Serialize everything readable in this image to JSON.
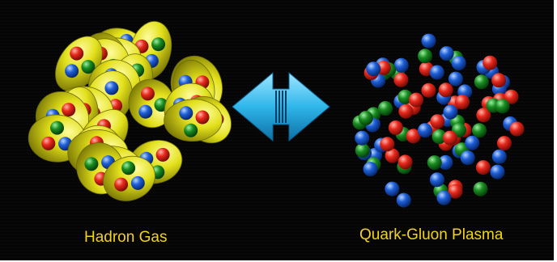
{
  "left_caption": "Hadron Gas",
  "right_caption": "Quark-Gluon Plasma",
  "colors": {
    "background": "#050505",
    "caption": "#f2d21a",
    "hadron": "#e2e01a",
    "quark_red": "#e8281c",
    "quark_green": "#1a8c22",
    "quark_blue": "#1e5fd8",
    "arrow": "#2fb6ea"
  },
  "icons": [
    "hadron-cluster",
    "double-arrow",
    "quark-cloud"
  ]
}
